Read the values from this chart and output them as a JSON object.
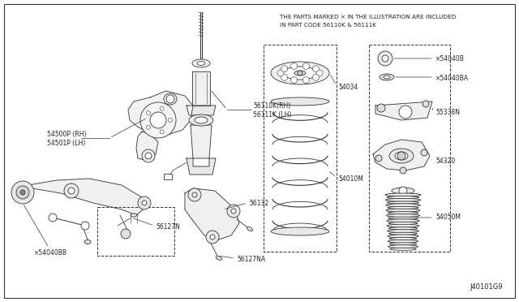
{
  "background_color": "#ffffff",
  "fig_width": 6.4,
  "fig_height": 3.72,
  "dpi": 100,
  "header_line1": "THE PARTS MARKED × IN THE ILLUSTRATION ARE INCLUDED",
  "header_line2": "IN PART CODE 56110K & 56111K",
  "footer": "J40101G9",
  "lw": 0.6,
  "line_color": "#333333"
}
